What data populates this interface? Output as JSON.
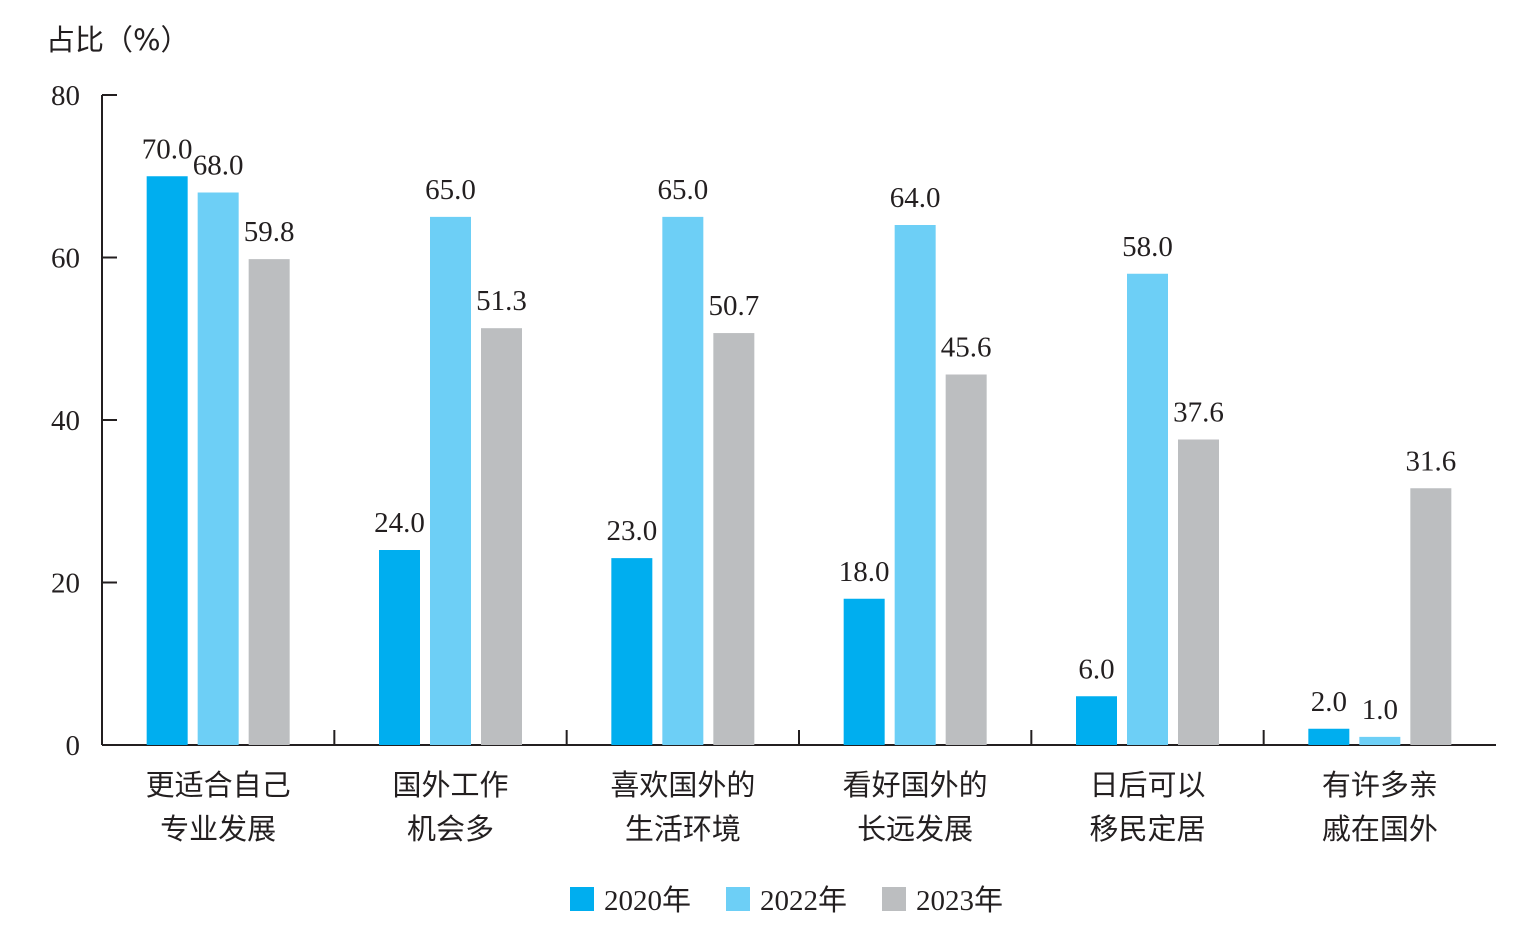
{
  "chart_data": {
    "type": "bar",
    "title": "",
    "xlabel": "",
    "ylabel": "占比（%）",
    "ylim": [
      0,
      80
    ],
    "yticks": [
      "0",
      "20",
      "40",
      "60",
      "80"
    ],
    "categories": [
      [
        "更适合自己",
        "专业发展"
      ],
      [
        "国外工作",
        "机会多"
      ],
      [
        "喜欢国外的",
        "生活环境"
      ],
      [
        "看好国外的",
        "长远发展"
      ],
      [
        "日后可以",
        "移民定居"
      ],
      [
        "有许多亲",
        "戚在国外"
      ]
    ],
    "series": [
      {
        "name": "2020年",
        "color": "#00aeef",
        "values": [
          70.0,
          24.0,
          23.0,
          18.0,
          6.0,
          2.0
        ],
        "labels": [
          "70.0",
          "24.0",
          "23.0",
          "18.0",
          "6.0",
          "2.0"
        ]
      },
      {
        "name": "2022年",
        "color": "#6dcff6",
        "values": [
          68.0,
          65.0,
          65.0,
          64.0,
          58.0,
          1.0
        ],
        "labels": [
          "68.0",
          "65.0",
          "65.0",
          "64.0",
          "58.0",
          "1.0"
        ]
      },
      {
        "name": "2023年",
        "color": "#bcbec0",
        "values": [
          59.8,
          51.3,
          50.7,
          45.6,
          37.6,
          31.6
        ],
        "labels": [
          "59.8",
          "51.3",
          "50.7",
          "45.6",
          "37.6",
          "31.6"
        ]
      }
    ],
    "legend_position": "bottom",
    "grid": false
  }
}
